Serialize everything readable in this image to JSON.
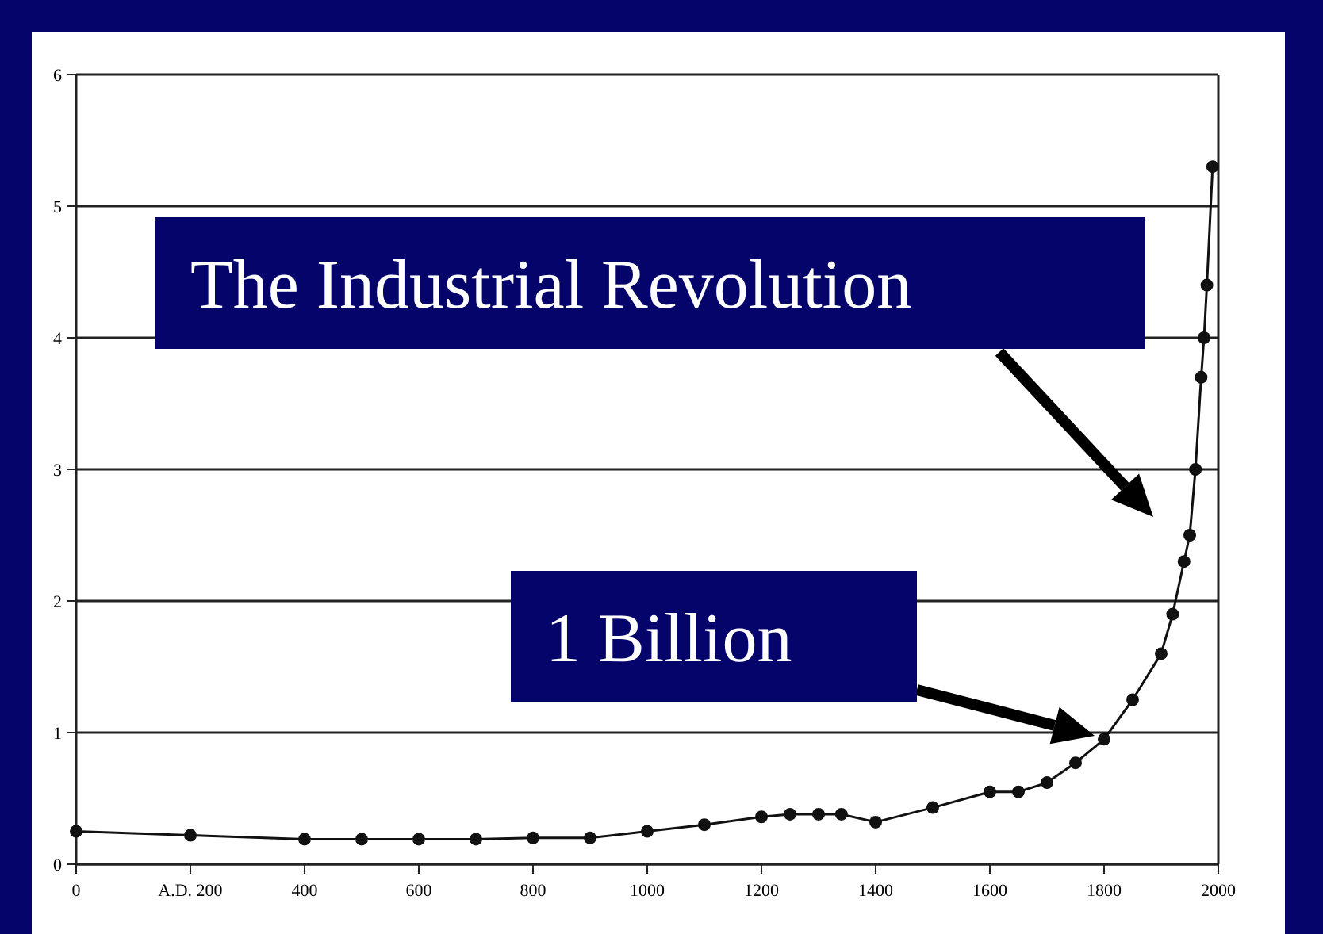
{
  "chart_data": {
    "type": "line",
    "x": [
      0,
      200,
      400,
      500,
      600,
      700,
      800,
      900,
      1000,
      1100,
      1200,
      1250,
      1300,
      1340,
      1400,
      1500,
      1600,
      1650,
      1700,
      1750,
      1800,
      1850,
      1900,
      1920,
      1940,
      1950,
      1960,
      1970,
      1975,
      1980,
      1990
    ],
    "series": [
      {
        "color": "#111111",
        "values": [
          0.25,
          0.22,
          0.19,
          0.19,
          0.19,
          0.19,
          0.2,
          0.2,
          0.25,
          0.3,
          0.36,
          0.38,
          0.38,
          0.38,
          0.32,
          0.43,
          0.55,
          0.55,
          0.62,
          0.77,
          0.95,
          1.25,
          1.6,
          1.9,
          2.3,
          2.5,
          3.0,
          3.7,
          4.0,
          4.4,
          5.3
        ]
      }
    ],
    "xlim": [
      0,
      2000
    ],
    "xticks": [
      0,
      {
        "value": 200,
        "label": "A.D. 200"
      },
      400,
      600,
      800,
      1000,
      1200,
      1400,
      1600,
      1800,
      2000
    ],
    "ylim": [
      0,
      6
    ],
    "yticks": [
      0,
      1,
      2,
      3,
      4,
      5,
      6
    ],
    "grid": "y",
    "marker": "circle",
    "line_style": "solid",
    "annotations": [
      "The Industrial Revolution",
      "1 Billion"
    ]
  }
}
